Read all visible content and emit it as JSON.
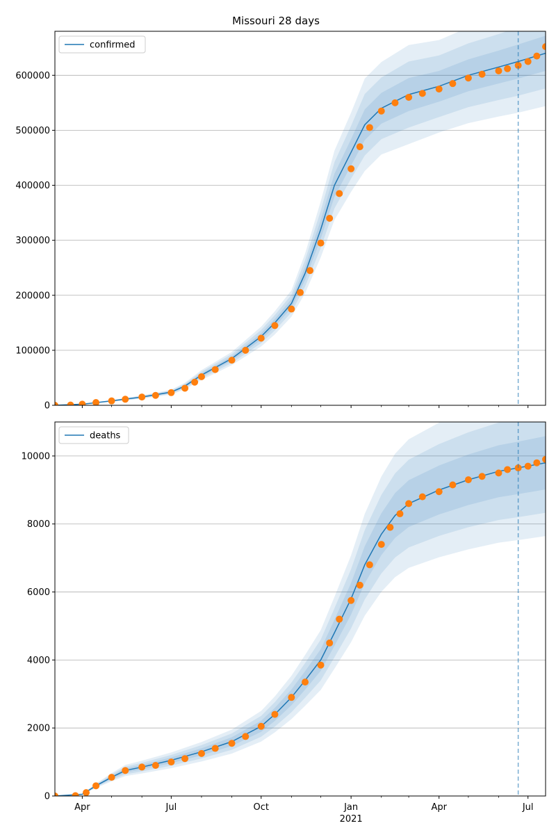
{
  "title": "Missouri 28 days",
  "colors": {
    "model_line": "#1f77b4",
    "observed_points": "#ff7f0e",
    "band": "#1f77b4",
    "forecast_start_line": "#1f77b4",
    "grid": "#b0b0b0"
  },
  "x_axis": {
    "tick_labels": [
      "Apr",
      "Jul",
      "Oct",
      "Jan",
      "Apr",
      "Jul"
    ],
    "tick_dates": [
      "2020-04-01",
      "2020-07-01",
      "2020-10-01",
      "2021-01-01",
      "2021-04-01",
      "2021-07-01"
    ],
    "year_label": "2021",
    "range": [
      "2020-03-04",
      "2021-07-19"
    ],
    "forecast_start": "2021-06-21"
  },
  "chart_data": [
    {
      "type": "line",
      "legend": "confirmed",
      "legend_location": "top-left",
      "grid": "horizontal",
      "ylim": [
        0,
        680000
      ],
      "y_ticks": [
        0,
        100000,
        200000,
        300000,
        400000,
        500000,
        600000
      ],
      "y_tick_labels": [
        "0",
        "100000",
        "200000",
        "300000",
        "400000",
        "500000",
        "600000"
      ],
      "model": {
        "x": [
          "2020-03-04",
          "2020-04-01",
          "2020-05-01",
          "2020-06-01",
          "2020-07-01",
          "2020-07-15",
          "2020-08-01",
          "2020-09-01",
          "2020-10-01",
          "2020-10-15",
          "2020-11-01",
          "2020-11-15",
          "2020-12-01",
          "2020-12-15",
          "2021-01-01",
          "2021-01-15",
          "2021-02-01",
          "2021-03-01",
          "2021-04-01",
          "2021-05-01",
          "2021-06-01",
          "2021-06-21",
          "2021-07-19"
        ],
        "y": [
          0,
          2000,
          8000,
          15000,
          24000,
          35000,
          55000,
          85000,
          125000,
          150000,
          185000,
          240000,
          320000,
          400000,
          460000,
          510000,
          540000,
          565000,
          580000,
          600000,
          615000,
          625000,
          640000
        ],
        "bands": [
          {
            "level": "inner",
            "lower": [
              0,
              1900,
              7500,
              14000,
              22500,
              33000,
              52000,
              81000,
              119000,
              143000,
              177000,
              228000,
              303000,
              379000,
              436000,
              482000,
              512000,
              535000,
              552000,
              571000,
              585000,
              594000,
              608000
            ],
            "upper": [
              0,
              2100,
              8500,
              16000,
              25500,
              37000,
              58000,
              89000,
              131000,
              157000,
              193000,
              252000,
              337000,
              421000,
              484000,
              538000,
              568000,
              595000,
              608000,
              629000,
              645000,
              656000,
              672000
            ]
          },
          {
            "level": "middle",
            "lower": [
              0,
              1800,
              7000,
              13000,
              21000,
              31000,
              49000,
              77000,
              113000,
              136000,
              169000,
              216000,
              286000,
              358000,
              412000,
              454000,
              484000,
              505000,
              524000,
              542000,
              555000,
              563000,
              576000
            ],
            "upper": [
              0,
              2200,
              9000,
              17000,
              27000,
              39000,
              61000,
              93000,
              137000,
              164000,
              201000,
              264000,
              354000,
              442000,
              508000,
              566000,
              596000,
              625000,
              636000,
              658000,
              675000,
              687000,
              704000
            ]
          },
          {
            "level": "outer",
            "lower": [
              0,
              1700,
              6500,
              12000,
              19500,
              29000,
              46000,
              73000,
              107000,
              129000,
              161000,
              204000,
              269000,
              337000,
              388000,
              426000,
              456000,
              475000,
              496000,
              513000,
              525000,
              532000,
              544000
            ],
            "upper": [
              0,
              2300,
              9500,
              18000,
              28500,
              41000,
              64000,
              97000,
              143000,
              171000,
              209000,
              276000,
              371000,
              463000,
              532000,
              594000,
              624000,
              655000,
              664000,
              687000,
              705000,
              718000,
              736000
            ]
          }
        ]
      },
      "observed": {
        "x": [
          "2020-03-04",
          "2020-03-20",
          "2020-04-01",
          "2020-04-15",
          "2020-05-01",
          "2020-05-15",
          "2020-06-01",
          "2020-06-15",
          "2020-07-01",
          "2020-07-15",
          "2020-07-25",
          "2020-08-01",
          "2020-08-15",
          "2020-09-01",
          "2020-09-15",
          "2020-10-01",
          "2020-10-15",
          "2020-11-01",
          "2020-11-10",
          "2020-11-20",
          "2020-12-01",
          "2020-12-10",
          "2020-12-20",
          "2021-01-01",
          "2021-01-10",
          "2021-01-20",
          "2021-02-01",
          "2021-02-15",
          "2021-03-01",
          "2021-03-15",
          "2021-04-01",
          "2021-04-15",
          "2021-05-01",
          "2021-05-15",
          "2021-06-01",
          "2021-06-10",
          "2021-06-21",
          "2021-07-01",
          "2021-07-10",
          "2021-07-19"
        ],
        "y": [
          0,
          500,
          2000,
          5000,
          8000,
          11000,
          15000,
          18000,
          23000,
          31000,
          42000,
          52000,
          65000,
          82000,
          100000,
          122000,
          145000,
          175000,
          205000,
          245000,
          295000,
          340000,
          385000,
          430000,
          470000,
          505000,
          535000,
          550000,
          560000,
          567000,
          575000,
          585000,
          595000,
          602000,
          608000,
          612000,
          618000,
          625000,
          635000,
          652000
        ]
      }
    },
    {
      "type": "line",
      "legend": "deaths",
      "legend_location": "top-left",
      "grid": "horizontal",
      "ylim": [
        0,
        11000
      ],
      "y_ticks": [
        0,
        2000,
        4000,
        6000,
        8000,
        10000
      ],
      "y_tick_labels": [
        "0",
        "2000",
        "4000",
        "6000",
        "8000",
        "10000"
      ],
      "model": {
        "x": [
          "2020-03-04",
          "2020-04-01",
          "2020-04-15",
          "2020-05-01",
          "2020-05-15",
          "2020-06-01",
          "2020-07-01",
          "2020-08-01",
          "2020-09-01",
          "2020-10-01",
          "2020-10-15",
          "2020-11-01",
          "2020-11-15",
          "2020-12-01",
          "2020-12-15",
          "2021-01-01",
          "2021-01-15",
          "2021-02-01",
          "2021-02-15",
          "2021-03-01",
          "2021-04-01",
          "2021-05-01",
          "2021-06-01",
          "2021-06-21",
          "2021-07-19"
        ],
        "y": [
          0,
          50,
          300,
          550,
          750,
          850,
          1050,
          1300,
          1600,
          2050,
          2400,
          2900,
          3400,
          4000,
          4800,
          5800,
          6800,
          7700,
          8250,
          8600,
          9000,
          9300,
          9550,
          9650,
          9800
        ],
        "bands": [
          {
            "level": "inner",
            "lower": [
              0,
              45,
              276,
              506,
              690,
              782,
              966,
              1196,
              1472,
              1886,
              2208,
              2668,
              3128,
              3680,
              4416,
              5336,
              6256,
              7084,
              7590,
              7912,
              8280,
              8556,
              8786,
              8878,
              9016
            ],
            "upper": [
              0,
              55,
              324,
              594,
              810,
              918,
              1134,
              1404,
              1728,
              2214,
              2592,
              3132,
              3672,
              4320,
              5184,
              6264,
              7344,
              8316,
              8910,
              9288,
              9720,
              10044,
              10314,
              10422,
              10584
            ]
          },
          {
            "level": "middle",
            "lower": [
              0,
              40,
              255,
              467,
              637,
              722,
              892,
              1105,
              1360,
              1742,
              2040,
              2465,
              2890,
              3400,
              4080,
              4930,
              5780,
              6545,
              7012,
              7310,
              7650,
              7905,
              8117,
              8202,
              8330
            ],
            "upper": [
              0,
              60,
              345,
              632,
              862,
              977,
              1207,
              1495,
              1840,
              2357,
              2760,
              3335,
              3910,
              4600,
              5520,
              6670,
              7820,
              8855,
              9487,
              9890,
              10350,
              10695,
              10982,
              11097,
              11270
            ]
          },
          {
            "level": "outer",
            "lower": [
              0,
              35,
              234,
              429,
              585,
              663,
              819,
              1014,
              1248,
              1599,
              1872,
              2262,
              2652,
              3120,
              3744,
              4524,
              5304,
              6006,
              6435,
              6708,
              7020,
              7254,
              7449,
              7527,
              7644
            ],
            "upper": [
              0,
              65,
              366,
              671,
              915,
              1037,
              1281,
              1586,
              1952,
              2501,
              2928,
              3538,
              4148,
              4880,
              5856,
              7076,
              8296,
              9394,
              10065,
              10492,
              10980,
              11346,
              11651,
              11773,
              11956
            ]
          }
        ]
      },
      "observed": {
        "x": [
          "2020-03-04",
          "2020-03-25",
          "2020-04-05",
          "2020-04-15",
          "2020-05-01",
          "2020-05-15",
          "2020-06-01",
          "2020-06-15",
          "2020-07-01",
          "2020-07-15",
          "2020-08-01",
          "2020-08-15",
          "2020-09-01",
          "2020-09-15",
          "2020-10-01",
          "2020-10-15",
          "2020-11-01",
          "2020-11-15",
          "2020-12-01",
          "2020-12-10",
          "2020-12-20",
          "2021-01-01",
          "2021-01-10",
          "2021-01-20",
          "2021-02-01",
          "2021-02-10",
          "2021-02-20",
          "2021-03-01",
          "2021-03-15",
          "2021-04-01",
          "2021-04-15",
          "2021-05-01",
          "2021-05-15",
          "2021-06-01",
          "2021-06-10",
          "2021-06-21",
          "2021-07-01",
          "2021-07-10",
          "2021-07-19"
        ],
        "y": [
          0,
          10,
          100,
          300,
          550,
          750,
          850,
          900,
          1000,
          1100,
          1250,
          1400,
          1550,
          1750,
          2050,
          2400,
          2900,
          3350,
          3850,
          4500,
          5200,
          5750,
          6200,
          6800,
          7400,
          7900,
          8300,
          8600,
          8800,
          8950,
          9150,
          9300,
          9400,
          9500,
          9600,
          9650,
          9700,
          9800,
          9900
        ]
      }
    }
  ]
}
